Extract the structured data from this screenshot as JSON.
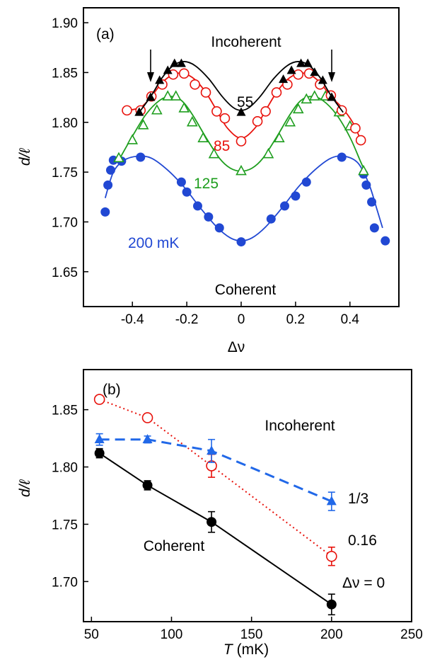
{
  "chart_data": [
    {
      "panel": "(a)",
      "type": "scatter",
      "xlabel": "Δν",
      "ylabel": "d/ℓ",
      "xlim": [
        -0.58,
        0.58
      ],
      "ylim": [
        1.615,
        1.915
      ],
      "xticks": [
        -0.4,
        -0.2,
        0,
        0.2,
        0.4
      ],
      "xtick_labels": [
        "-0.4",
        "-0.2",
        "0",
        "0.2",
        "0.4"
      ],
      "yticks": [
        1.65,
        1.7,
        1.75,
        1.8,
        1.85,
        1.9
      ],
      "ytick_labels": [
        "1.65",
        "1.70",
        "1.75",
        "1.80",
        "1.85",
        "1.90"
      ],
      "arrows_x": [
        -0.333,
        0.333
      ],
      "annotations": {
        "incoherent": "Incoherent",
        "coherent": "Coherent",
        "t200": "200 mK",
        "t125": "125",
        "t85": "85",
        "t55": "55"
      },
      "series": [
        {
          "label": "55",
          "color": "#000000",
          "marker": "filled-triangle",
          "x": [
            -0.375,
            -0.333,
            -0.3,
            -0.27,
            -0.245,
            -0.22,
            0,
            0.155,
            0.185,
            0.22,
            0.245,
            0.27,
            0.3,
            0.333
          ],
          "y": [
            1.81,
            1.825,
            1.842,
            1.852,
            1.859,
            1.859,
            1.81,
            1.843,
            1.852,
            1.859,
            1.859,
            1.85,
            1.842,
            1.825
          ],
          "curve": [
            [
              -0.375,
              1.81
            ],
            [
              -0.33,
              1.827
            ],
            [
              -0.29,
              1.845
            ],
            [
              -0.25,
              1.857
            ],
            [
              -0.21,
              1.861
            ],
            [
              -0.17,
              1.857
            ],
            [
              -0.12,
              1.844
            ],
            [
              -0.07,
              1.826
            ],
            [
              -0.03,
              1.815
            ],
            [
              0,
              1.812
            ],
            [
              0.03,
              1.815
            ],
            [
              0.07,
              1.826
            ],
            [
              0.12,
              1.844
            ],
            [
              0.17,
              1.857
            ],
            [
              0.21,
              1.861
            ],
            [
              0.25,
              1.857
            ],
            [
              0.29,
              1.845
            ],
            [
              0.33,
              1.827
            ],
            [
              0.375,
              1.81
            ]
          ]
        },
        {
          "label": "85",
          "color": "#e8120c",
          "marker": "open-circle",
          "x": [
            -0.42,
            -0.37,
            -0.33,
            -0.29,
            -0.25,
            -0.21,
            -0.17,
            -0.13,
            -0.09,
            -0.06,
            0,
            0.06,
            0.09,
            0.13,
            0.17,
            0.21,
            0.25,
            0.29,
            0.33,
            0.37,
            0.42,
            0.44
          ],
          "y": [
            1.812,
            1.812,
            1.826,
            1.838,
            1.848,
            1.849,
            1.838,
            1.83,
            1.811,
            1.804,
            1.781,
            1.801,
            1.811,
            1.83,
            1.838,
            1.848,
            1.849,
            1.838,
            1.827,
            1.812,
            1.794,
            1.782
          ],
          "curve": [
            [
              -0.42,
              1.812
            ],
            [
              -0.37,
              1.815
            ],
            [
              -0.33,
              1.826
            ],
            [
              -0.29,
              1.84
            ],
            [
              -0.25,
              1.848
            ],
            [
              -0.21,
              1.849
            ],
            [
              -0.17,
              1.843
            ],
            [
              -0.13,
              1.83
            ],
            [
              -0.09,
              1.812
            ],
            [
              -0.05,
              1.794
            ],
            [
              0,
              1.784
            ],
            [
              0.05,
              1.794
            ],
            [
              0.09,
              1.812
            ],
            [
              0.13,
              1.83
            ],
            [
              0.17,
              1.843
            ],
            [
              0.21,
              1.849
            ],
            [
              0.25,
              1.848
            ],
            [
              0.29,
              1.84
            ],
            [
              0.33,
              1.826
            ],
            [
              0.37,
              1.815
            ],
            [
              0.41,
              1.8
            ],
            [
              0.44,
              1.782
            ]
          ]
        },
        {
          "label": "125",
          "color": "#1e9e1e",
          "marker": "open-triangle",
          "x": [
            -0.45,
            -0.4,
            -0.36,
            -0.31,
            -0.27,
            -0.24,
            -0.21,
            -0.18,
            -0.14,
            -0.1,
            0,
            0.1,
            0.14,
            0.18,
            0.21,
            0.24,
            0.27,
            0.31,
            0.36,
            0.4,
            0.45
          ],
          "y": [
            1.764,
            1.782,
            1.797,
            1.812,
            1.826,
            1.826,
            1.814,
            1.8,
            1.784,
            1.768,
            1.751,
            1.768,
            1.784,
            1.8,
            1.813,
            1.823,
            1.826,
            1.826,
            1.81,
            1.796,
            1.751
          ],
          "curve": [
            [
              -0.45,
              1.762
            ],
            [
              -0.4,
              1.786
            ],
            [
              -0.35,
              1.808
            ],
            [
              -0.3,
              1.822
            ],
            [
              -0.26,
              1.826
            ],
            [
              -0.22,
              1.822
            ],
            [
              -0.18,
              1.808
            ],
            [
              -0.13,
              1.785
            ],
            [
              -0.08,
              1.764
            ],
            [
              -0.04,
              1.754
            ],
            [
              0,
              1.751
            ],
            [
              0.04,
              1.754
            ],
            [
              0.08,
              1.764
            ],
            [
              0.13,
              1.785
            ],
            [
              0.18,
              1.808
            ],
            [
              0.22,
              1.822
            ],
            [
              0.26,
              1.826
            ],
            [
              0.3,
              1.822
            ],
            [
              0.35,
              1.808
            ],
            [
              0.4,
              1.785
            ],
            [
              0.44,
              1.76
            ],
            [
              0.46,
              1.748
            ]
          ]
        },
        {
          "label": "200 mK",
          "color": "#2148d3",
          "marker": "filled-circle",
          "x": [
            -0.5,
            -0.49,
            -0.48,
            -0.47,
            -0.44,
            -0.37,
            -0.22,
            -0.2,
            -0.16,
            -0.12,
            -0.08,
            0,
            0.11,
            0.16,
            0.2,
            0.24,
            0.37,
            0.45,
            0.46,
            0.48,
            0.49,
            0.53
          ],
          "y": [
            1.71,
            1.737,
            1.752,
            1.762,
            1.761,
            1.765,
            1.74,
            1.73,
            1.716,
            1.705,
            1.694,
            1.68,
            1.703,
            1.716,
            1.726,
            1.74,
            1.765,
            1.748,
            1.737,
            1.72,
            1.694,
            1.681
          ],
          "curve": [
            [
              -0.5,
              1.724
            ],
            [
              -0.47,
              1.75
            ],
            [
              -0.43,
              1.762
            ],
            [
              -0.38,
              1.766
            ],
            [
              -0.33,
              1.764
            ],
            [
              -0.27,
              1.752
            ],
            [
              -0.21,
              1.735
            ],
            [
              -0.15,
              1.714
            ],
            [
              -0.09,
              1.695
            ],
            [
              -0.04,
              1.684
            ],
            [
              0,
              1.681
            ],
            [
              0.04,
              1.684
            ],
            [
              0.09,
              1.695
            ],
            [
              0.15,
              1.714
            ],
            [
              0.21,
              1.735
            ],
            [
              0.27,
              1.752
            ],
            [
              0.33,
              1.764
            ],
            [
              0.38,
              1.766
            ],
            [
              0.43,
              1.759
            ],
            [
              0.47,
              1.738
            ],
            [
              0.5,
              1.712
            ],
            [
              0.52,
              1.694
            ]
          ]
        }
      ]
    },
    {
      "panel": "(b)",
      "type": "line",
      "xlabel_italic": "T",
      "xlabel_rest": " (mK)",
      "ylabel": "d/ℓ",
      "xlim": [
        45,
        250
      ],
      "ylim": [
        1.665,
        1.885
      ],
      "xticks": [
        50,
        100,
        150,
        200,
        250
      ],
      "xtick_labels": [
        "50",
        "100",
        "150",
        "200",
        "250"
      ],
      "yticks": [
        1.7,
        1.75,
        1.8,
        1.85
      ],
      "ytick_labels": [
        "1.70",
        "1.75",
        "1.80",
        "1.85"
      ],
      "annotations": {
        "incoherent": "Incoherent",
        "coherent": "Coherent"
      },
      "series": [
        {
          "label": "Δν = 0",
          "color": "#000000",
          "marker": "filled-circle",
          "line": "solid",
          "x": [
            55,
            85,
            125,
            200
          ],
          "y": [
            1.812,
            1.784,
            1.752,
            1.68
          ],
          "err": [
            0.004,
            0.004,
            0.009,
            0.009
          ]
        },
        {
          "label": "0.16",
          "color": "#e8120c",
          "marker": "open-circle",
          "line": "dotted",
          "x": [
            55,
            85,
            125,
            200
          ],
          "y": [
            1.859,
            1.843,
            1.801,
            1.722
          ],
          "err": [
            0.003,
            0.003,
            0.01,
            0.008
          ]
        },
        {
          "label": "1/3",
          "color": "#2168e8",
          "marker": "filled-triangle",
          "line": "dashed",
          "x": [
            55,
            85,
            125,
            200
          ],
          "y": [
            1.824,
            1.824,
            1.814,
            1.77
          ],
          "err": [
            0.005,
            0.003,
            0.01,
            0.008
          ]
        }
      ]
    }
  ]
}
